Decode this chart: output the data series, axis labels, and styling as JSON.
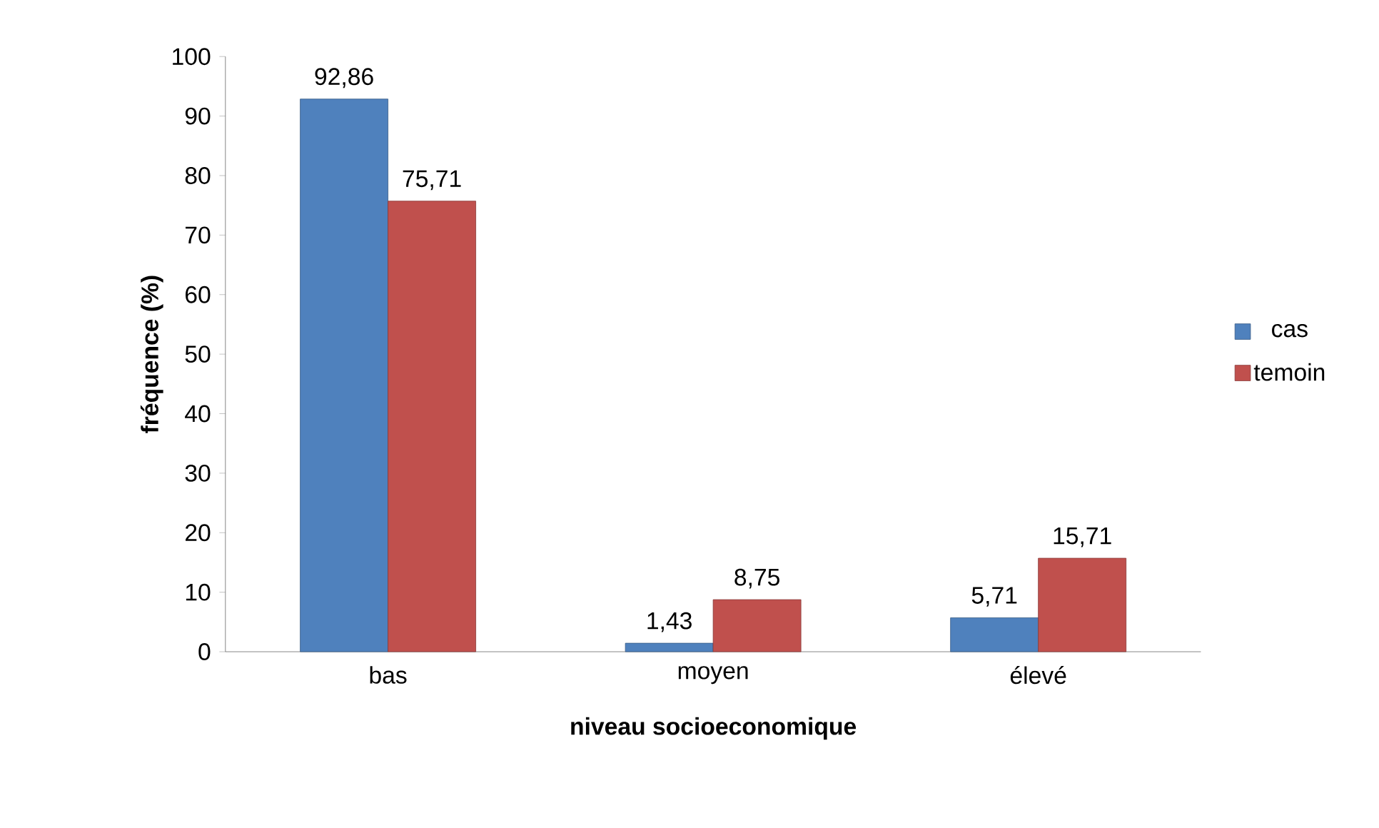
{
  "chart_data": {
    "type": "bar",
    "xlabel": "niveau socioeconomique",
    "ylabel": "fréquence (%)",
    "categories": [
      "bas",
      "moyen",
      "élevé"
    ],
    "series": [
      {
        "name": "cas",
        "color": "#4f81bd",
        "values": [
          92.86,
          1.43,
          5.71
        ],
        "value_labels": [
          "92,86",
          "1,43",
          "5,71"
        ]
      },
      {
        "name": "temoin",
        "color": "#c0504d",
        "values": [
          75.71,
          8.75,
          15.71
        ],
        "value_labels": [
          "75,71",
          "8,75",
          "15,71"
        ]
      }
    ],
    "ylim": [
      0,
      100
    ],
    "yticks": [
      0,
      10,
      20,
      30,
      40,
      50,
      60,
      70,
      80,
      90,
      100
    ],
    "grid": false,
    "legend": "right"
  }
}
